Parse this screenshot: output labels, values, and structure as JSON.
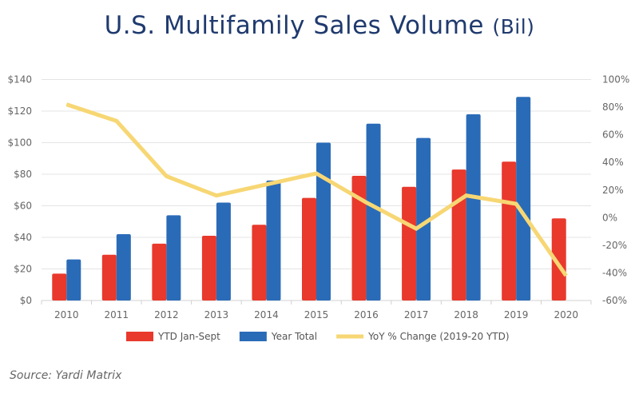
{
  "chart_data": {
    "type": "bar",
    "title": "U.S. Multifamily Sales Volume",
    "title_unit": "(Bil)",
    "categories": [
      "2010",
      "2011",
      "2012",
      "2013",
      "2014",
      "2015",
      "2016",
      "2017",
      "2018",
      "2019",
      "2020"
    ],
    "series": [
      {
        "name": "YTD Jan-Sept",
        "type": "bar",
        "axis": "left",
        "color": "#e8392c",
        "values": [
          17,
          29,
          36,
          41,
          48,
          65,
          79,
          72,
          83,
          88,
          52
        ]
      },
      {
        "name": "Year Total",
        "type": "bar",
        "axis": "left",
        "color": "#2a6bb8",
        "values": [
          26,
          42,
          54,
          62,
          76,
          100,
          112,
          103,
          118,
          129,
          null
        ]
      },
      {
        "name": "YoY % Change (2019-20 YTD)",
        "type": "line",
        "axis": "right",
        "color": "#f7d774",
        "values": [
          82,
          70,
          30,
          16,
          24,
          32,
          11,
          -8,
          16,
          10,
          -42
        ]
      }
    ],
    "left_axis": {
      "range": [
        0,
        140
      ],
      "ticks": [
        "$0",
        "$20",
        "$40",
        "$60",
        "$80",
        "$100",
        "$120",
        "$140"
      ]
    },
    "right_axis": {
      "range": [
        -60,
        100
      ],
      "ticks": [
        "-60%",
        "-40%",
        "-20%",
        "0%",
        "20%",
        "40%",
        "60%",
        "80%",
        "100%"
      ]
    },
    "grid": true,
    "legend_position": "bottom"
  },
  "source": "Source: Yardi Matrix"
}
